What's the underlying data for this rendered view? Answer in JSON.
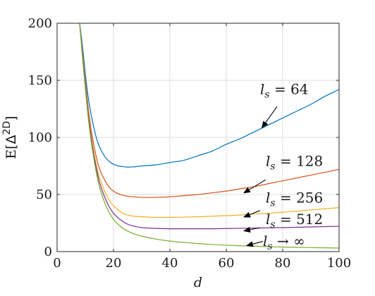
{
  "chart_data": {
    "type": "line",
    "title": "",
    "xlabel": "d",
    "ylabel": "E[Δ²ᴰ]",
    "ylabel_base": "E[",
    "ylabel_delta": "Δ",
    "ylabel_sup": "2D",
    "ylabel_close": "]",
    "xlim": [
      0,
      100
    ],
    "ylim": [
      0,
      200
    ],
    "xticks": [
      0,
      20,
      40,
      60,
      80,
      100
    ],
    "yticks": [
      0,
      50,
      100,
      150,
      200
    ],
    "grid": true,
    "legend": "none",
    "series": [
      {
        "name": "l_s = 64",
        "color": "#0072BD",
        "x": [
          8,
          9,
          10,
          11,
          12,
          13,
          14,
          15,
          17,
          19,
          21,
          23,
          25,
          27,
          30,
          35,
          40,
          45,
          50,
          55,
          60,
          65,
          70,
          75,
          80,
          85,
          90,
          95,
          100
        ],
        "y": [
          200,
          180,
          156,
          136,
          121,
          109,
          99,
          92,
          83,
          78,
          75.5,
          74.5,
          74,
          74.2,
          75,
          76,
          78,
          80,
          84,
          88,
          94,
          99,
          105,
          111,
          117,
          123,
          129,
          136,
          142
        ]
      },
      {
        "name": "l_s = 128",
        "color": "#D95319",
        "x": [
          8,
          9,
          10,
          11,
          12,
          13,
          14,
          15,
          17,
          19,
          21,
          23,
          25,
          27,
          30,
          35,
          40,
          45,
          50,
          55,
          60,
          65,
          70,
          75,
          80,
          85,
          90,
          95,
          100
        ],
        "y": [
          200,
          175,
          150,
          127,
          108,
          94,
          82,
          73,
          62,
          55,
          51.5,
          49.5,
          48.5,
          48,
          47.5,
          47.5,
          48,
          49,
          50,
          51.5,
          53,
          55,
          57,
          59.5,
          62,
          64.5,
          67,
          69.5,
          72
        ]
      },
      {
        "name": "l_s = 256",
        "color": "#EDB120",
        "x": [
          8,
          9,
          10,
          11,
          12,
          13,
          14,
          15,
          17,
          19,
          21,
          23,
          25,
          27,
          30,
          35,
          40,
          45,
          50,
          55,
          60,
          65,
          70,
          75,
          80,
          85,
          90,
          95,
          100
        ],
        "y": [
          200,
          173,
          147,
          123,
          103,
          88,
          75,
          65,
          52,
          43,
          38,
          34,
          32,
          31,
          30.5,
          30,
          30,
          30.2,
          30.5,
          31,
          31.5,
          32,
          33,
          33.5,
          34.5,
          35.5,
          36.5,
          37.5,
          38.5
        ]
      },
      {
        "name": "l_s = 512",
        "color": "#7E2F8E",
        "x": [
          8,
          9,
          10,
          11,
          12,
          13,
          14,
          15,
          17,
          19,
          21,
          23,
          25,
          27,
          30,
          35,
          40,
          45,
          50,
          55,
          60,
          65,
          70,
          75,
          80,
          85,
          90,
          95,
          100
        ],
        "y": [
          200,
          172,
          145,
          121,
          101,
          85,
          72,
          61,
          47,
          37,
          31,
          27,
          24,
          22.5,
          21,
          20.3,
          20,
          20,
          20,
          20,
          20.2,
          20.4,
          20.6,
          20.8,
          21,
          21.3,
          21.6,
          21.9,
          22.2
        ]
      },
      {
        "name": "l_s → ∞",
        "color": "#77AC30",
        "x": [
          8,
          9,
          10,
          11,
          12,
          13,
          14,
          15,
          17,
          19,
          21,
          23,
          25,
          27,
          30,
          35,
          40,
          45,
          50,
          55,
          60,
          65,
          70,
          75,
          80,
          85,
          90,
          95,
          100
        ],
        "y": [
          200,
          170,
          143,
          118,
          98,
          82,
          68,
          57,
          42,
          32,
          25.5,
          21,
          18,
          15.8,
          13.5,
          11,
          9.2,
          8,
          7,
          6.2,
          5.6,
          5.1,
          4.7,
          4.3,
          4,
          3.7,
          3.5,
          3.3,
          3.1
        ]
      }
    ],
    "annotations": [
      {
        "label_var": "l",
        "label_sub": "s",
        "label_rest": " = 64",
        "text_x": 72,
        "text_y": 138,
        "arrow_from": [
          78,
          127
        ],
        "arrow_to": [
          72.5,
          108
        ]
      },
      {
        "label_var": "l",
        "label_sub": "s",
        "label_rest": " = 128",
        "text_x": 74,
        "text_y": 75,
        "arrow_from": [
          74,
          63
        ],
        "arrow_to": [
          66,
          51
        ]
      },
      {
        "label_var": "l",
        "label_sub": "s",
        "label_rest": " = 256",
        "text_x": 74,
        "text_y": 43,
        "arrow_from": [
          72,
          36
        ],
        "arrow_to": [
          66,
          30
        ]
      },
      {
        "label_var": "l",
        "label_sub": "s",
        "label_rest": " = 512",
        "text_x": 74,
        "text_y": 24,
        "arrow_from": [
          72,
          21
        ],
        "arrow_to": [
          66,
          18
        ]
      },
      {
        "label_var": "l",
        "label_sub": "s",
        "label_rest": " → ∞",
        "text_x": 73,
        "text_y": 5,
        "arrow_from": [
          73,
          9
        ],
        "arrow_to": [
          67,
          5
        ]
      }
    ]
  }
}
